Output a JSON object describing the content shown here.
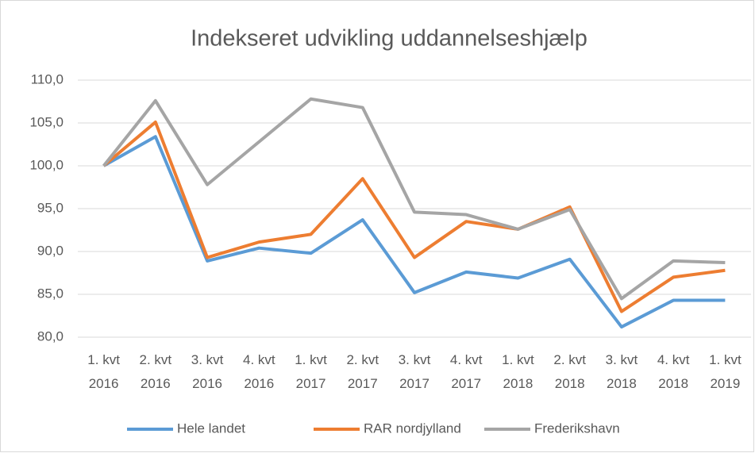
{
  "chart_data": {
    "type": "line",
    "title": "Indekseret udvikling uddannelseshjælp",
    "categories": [
      "1. kvt 2016",
      "2. kvt 2016",
      "3. kvt 2016",
      "4. kvt 2016",
      "1. kvt 2017",
      "2. kvt 2017",
      "3. kvt 2017",
      "4. kvt 2017",
      "1. kvt 2018",
      "2. kvt 2018",
      "3. kvt 2018",
      "4. kvt 2018",
      "1. kvt 2019"
    ],
    "series": [
      {
        "name": "Hele landet",
        "color": "#5b9bd5",
        "values": [
          100,
          103.4,
          88.9,
          90.4,
          89.8,
          93.7,
          85.2,
          87.6,
          86.9,
          89.1,
          81.2,
          84.3,
          84.3
        ]
      },
      {
        "name": "RAR nordjylland",
        "color": "#ed7d31",
        "values": [
          100,
          105.1,
          89.3,
          91.1,
          92.0,
          98.5,
          89.3,
          93.5,
          92.6,
          95.2,
          83.0,
          87.0,
          87.8
        ]
      },
      {
        "name": "Frederikshavn",
        "color": "#a5a5a5",
        "values": [
          100,
          107.6,
          97.8,
          102.8,
          107.8,
          106.8,
          94.6,
          94.3,
          92.6,
          94.9,
          84.5,
          88.9,
          88.7
        ]
      }
    ],
    "ylim": [
      80,
      110
    ],
    "yticks": [
      {
        "value": 80,
        "label": "80,0"
      },
      {
        "value": 85,
        "label": "85,0"
      },
      {
        "value": 90,
        "label": "90,0"
      },
      {
        "value": 95,
        "label": "95,0"
      },
      {
        "value": 100,
        "label": "100,0"
      },
      {
        "value": 105,
        "label": "105,0"
      },
      {
        "value": 110,
        "label": "110,0"
      }
    ],
    "grid": true,
    "legend": "bottom"
  }
}
